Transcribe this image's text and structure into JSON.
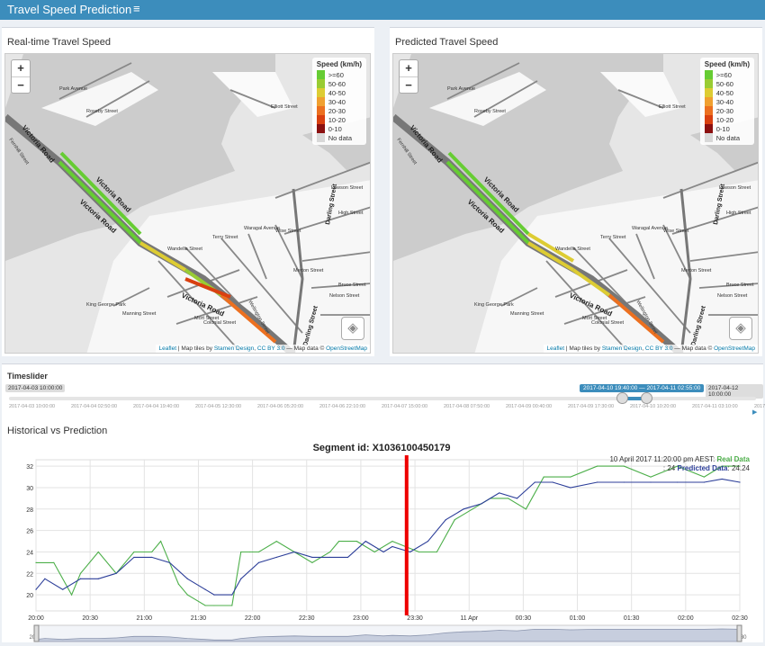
{
  "header": {
    "title": "Travel Speed Prediction",
    "menu_icon": "≡"
  },
  "realtime_panel": {
    "title": "Real-time Travel Speed"
  },
  "predicted_panel": {
    "title": "Predicted Travel Speed"
  },
  "map": {
    "zoom_in": "+",
    "zoom_out": "−",
    "legend_title": "Speed (km/h)",
    "legend": [
      {
        "label": ">=60",
        "color": "#66cc33"
      },
      {
        "label": "50-60",
        "color": "#99cc33"
      },
      {
        "label": "40-50",
        "color": "#ddcc33"
      },
      {
        "label": "30-40",
        "color": "#f0a030"
      },
      {
        "label": "20-30",
        "color": "#ec7020"
      },
      {
        "label": "10-20",
        "color": "#d94010"
      },
      {
        "label": "0-10",
        "color": "#8b1010"
      },
      {
        "label": "No data",
        "color": "#d8d8d8"
      }
    ],
    "attribution": {
      "leaflet": "Leaflet",
      "text1": " | Map tiles by ",
      "stamen": "Stamen Design",
      "sep": ", ",
      "cc": "CC BY 3.0",
      "text2": " — Map data © ",
      "osm": "OpenStreetMap"
    },
    "labels": {
      "victoria1": "Victoria Road",
      "victoria2": "Victoria Road",
      "victoria3": "Victoria Road",
      "victoria4": "Victoria Road",
      "darling1": "Darling Street",
      "darling2": "Darling Street",
      "park": "King George Park",
      "fernhill": "Fernhill Street",
      "parkave": "Park Avenue",
      "rosebyst": "Roseby Street",
      "elliott": "Elliott Street",
      "lawson": "Lawson Street",
      "highst": "High Street",
      "wiston": "Wise Street",
      "merton": "Merton Street",
      "nelson": "Nelson Street",
      "bruce": "Bruce Street",
      "terry": "Terry Street",
      "waragal": "Waragal Avenue",
      "wellington": "Wellington Street",
      "manning": "Manning Street",
      "mort": "Mort Street",
      "wandella": "Wandella Street",
      "colonial": "Colonial Street"
    }
  },
  "timeslider": {
    "label": "Timeslider",
    "min": "2017-04-03 10:00:00",
    "max": "2017-04-12 10:00:00",
    "range": "2017-04-10 19:40:00 — 2017-04-11 02:55:00",
    "ticks": [
      "2017-04-03 10:00:00",
      "2017-04-04 02:50:00",
      "2017-04-04 19:40:00",
      "2017-04-05 12:30:00",
      "2017-04-06 05:20:00",
      "2017-04-06 22:10:00",
      "2017-04-07 15:00:00",
      "2017-04-08 07:50:00",
      "2017-04-09 00:40:00",
      "2017-04-09 17:30:00",
      "2017-04-10 10:20:00",
      "2017-04-11 03:10:00",
      "2017-04-11 20:00:00"
    ]
  },
  "chart_panel": {
    "title": "Historical vs Prediction"
  },
  "chart_data": {
    "type": "line",
    "title": "Segment id: X1036100450179",
    "xlabel": "",
    "ylabel": "",
    "ylim": [
      18.5,
      32.6
    ],
    "y_ticks": [
      20,
      22,
      24,
      26,
      28,
      30,
      32
    ],
    "x_ticks": [
      "20:00",
      "20:30",
      "21:00",
      "21:30",
      "22:00",
      "22:30",
      "23:00",
      "23:30",
      "11 Apr",
      "00:30",
      "01:00",
      "01:30",
      "02:00",
      "02:30"
    ],
    "x_range_minutes": [
      0,
      395
    ],
    "series": [
      {
        "name": "Real Data",
        "color": "#4daf4a",
        "x": [
          0,
          10,
          20,
          25,
          35,
          45,
          55,
          65,
          70,
          80,
          85,
          95,
          100,
          110,
          115,
          120,
          125,
          135,
          145,
          155,
          165,
          170,
          180,
          190,
          200,
          215,
          225,
          235,
          245,
          255,
          265,
          275,
          285,
          300,
          315,
          330,
          345,
          360,
          375,
          385,
          395
        ],
        "values": [
          23,
          23,
          20,
          22,
          24,
          22,
          24,
          24,
          25,
          21,
          20,
          19,
          19,
          19,
          24,
          24,
          24,
          25,
          24,
          23,
          24,
          25,
          25,
          24,
          25,
          24,
          24,
          27,
          28,
          29,
          29,
          28,
          31,
          31,
          32,
          32,
          31,
          32,
          31,
          32,
          32
        ]
      },
      {
        "name": "Predicted Data",
        "color": "#2c3e99",
        "x": [
          0,
          5,
          15,
          25,
          35,
          45,
          55,
          65,
          75,
          85,
          95,
          100,
          110,
          115,
          125,
          135,
          145,
          155,
          165,
          175,
          185,
          195,
          200,
          210,
          220,
          230,
          240,
          250,
          260,
          270,
          280,
          290,
          300,
          315,
          330,
          345,
          360,
          375,
          385,
          395
        ],
        "values": [
          20.5,
          21.5,
          20.5,
          21.5,
          21.5,
          22,
          23.5,
          23.5,
          23,
          21.5,
          20.5,
          20,
          20,
          21.5,
          23,
          23.5,
          24,
          23.5,
          23.5,
          23.5,
          25,
          24,
          24.5,
          24,
          25,
          27,
          28,
          28.5,
          29.5,
          29,
          30.5,
          30.5,
          30,
          30.5,
          30.5,
          30.5,
          30.5,
          30.5,
          30.8,
          30.5
        ]
      }
    ],
    "marker_minute": 208,
    "tooltip": {
      "time": "10 April 2017 11:20:00 pm AEST",
      "sep": ": ",
      "real_label": "Real Data",
      "real_value": "24",
      "pred_label": "Predicted Data",
      "pred_value": "24.24"
    }
  }
}
